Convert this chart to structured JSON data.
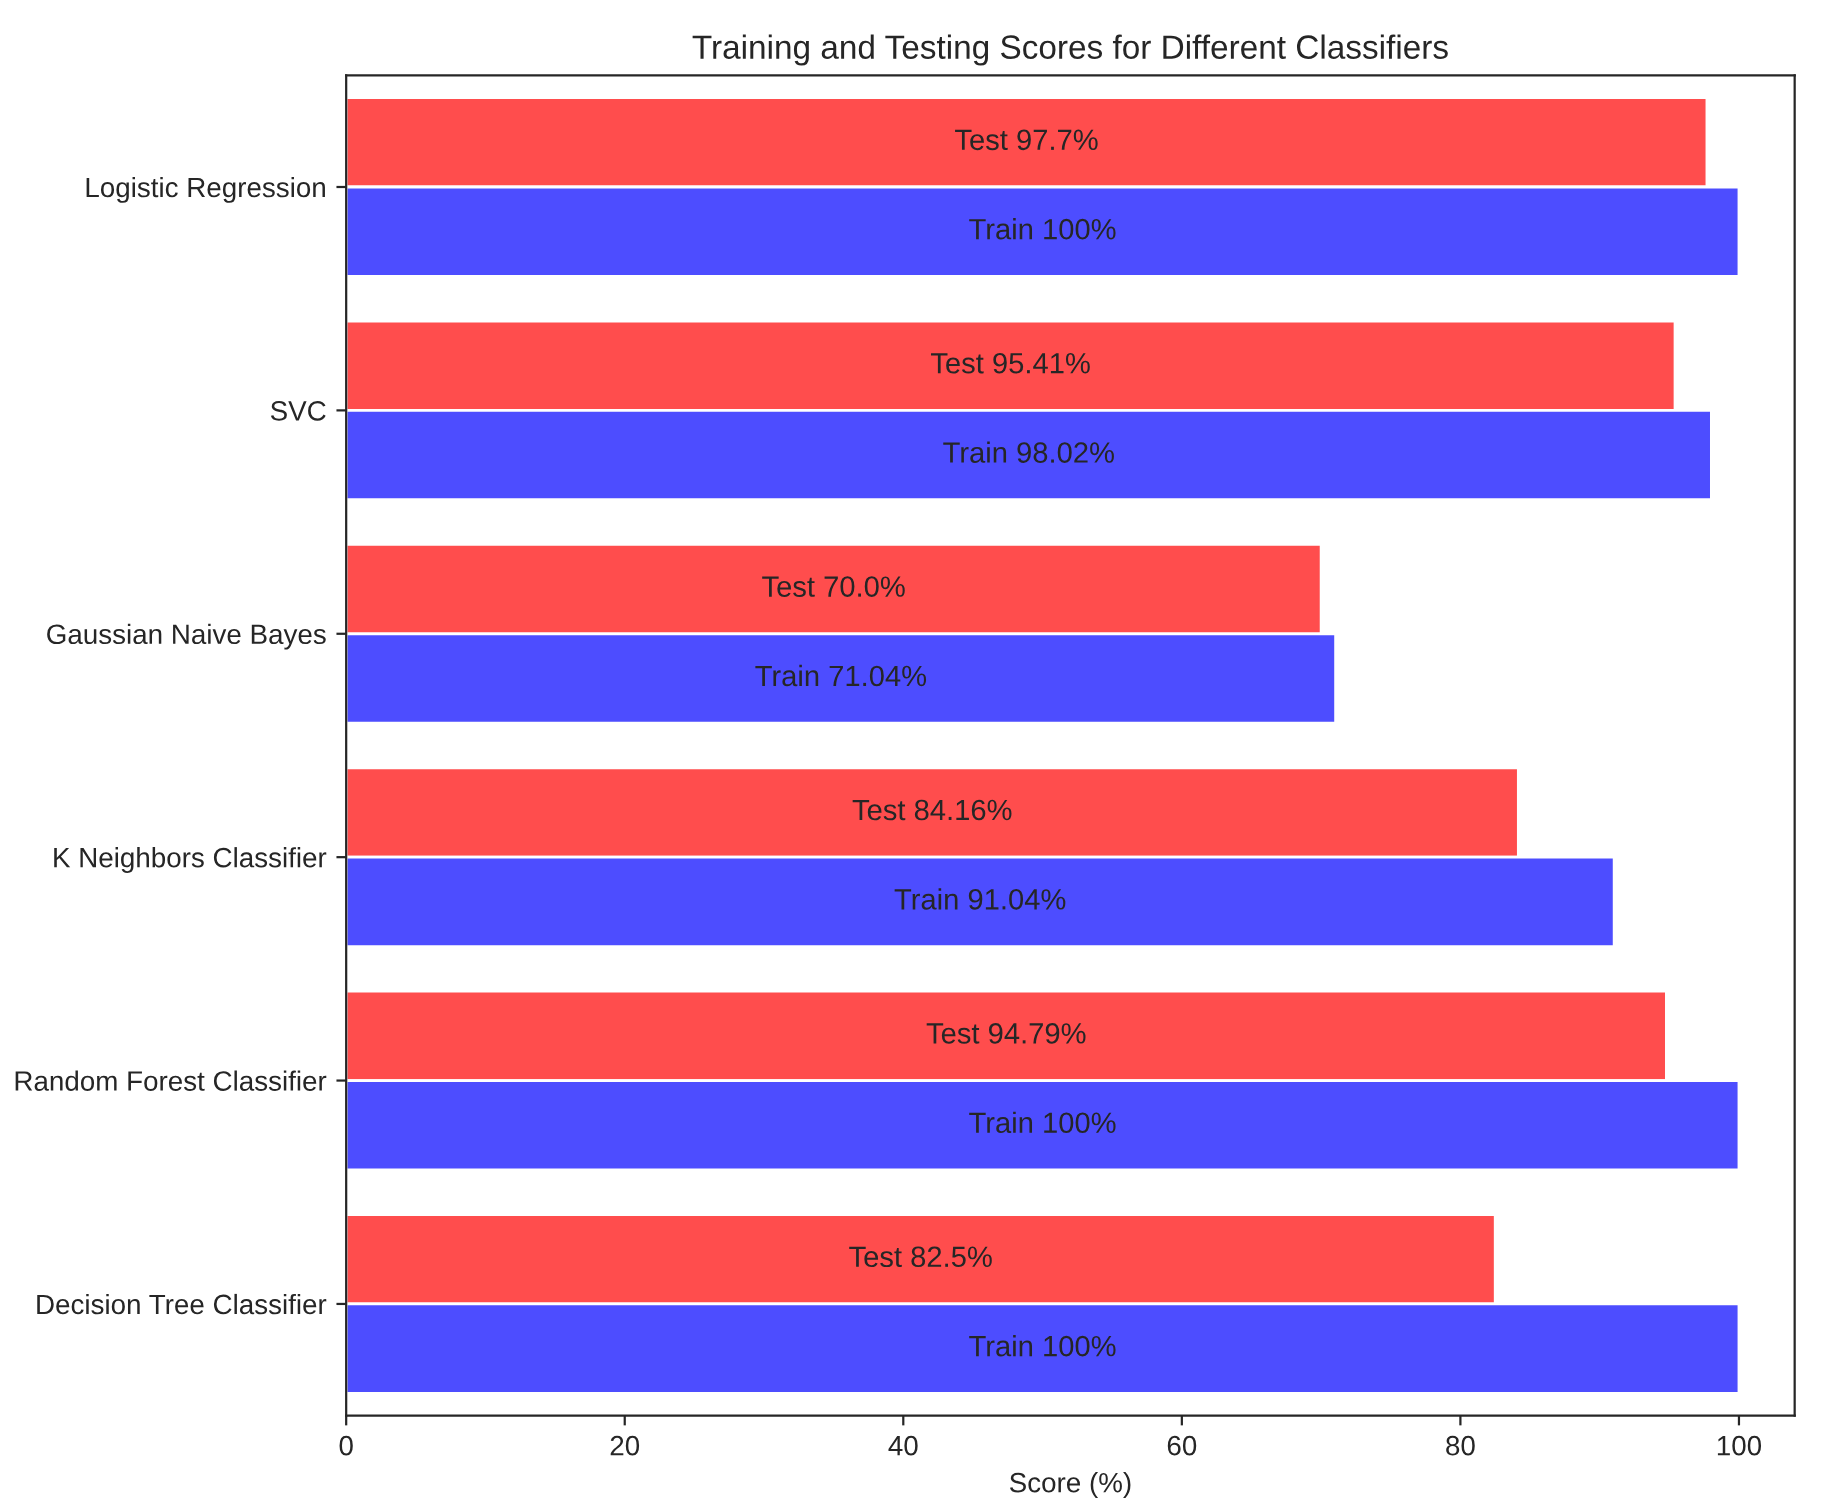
{
  "chart_data": {
    "type": "bar",
    "orientation": "horizontal",
    "title": "Training and Testing Scores for Different Classifiers",
    "xlabel": "Score (%)",
    "categories": [
      "Logistic Regression",
      "SVC",
      "Gaussian Naive Bayes",
      "K Neighbors Classifier",
      "Random Forest Classifier",
      "Decision Tree Classifier"
    ],
    "series": [
      {
        "color": "#ff4d4d",
        "values": [
          97.7,
          95.41,
          70.0,
          84.16,
          94.79,
          82.5
        ],
        "value_labels": [
          "Test 97.7%",
          "Test 95.41%",
          "Test 70.0%",
          "Test 84.16%",
          "Test 94.79%",
          "Test 82.5%"
        ]
      },
      {
        "color": "#4d4dff",
        "values": [
          100,
          98.02,
          71.04,
          91.04,
          100,
          100
        ],
        "value_labels": [
          "Train 100%",
          "Train 98.02%",
          "Train 71.04%",
          "Train 91.04%",
          "Train 100%",
          "Train 100%"
        ]
      }
    ],
    "xlim": [
      0,
      104
    ],
    "xticks": [
      0,
      20,
      40,
      60,
      80,
      100
    ],
    "grid": false,
    "legend": false
  }
}
